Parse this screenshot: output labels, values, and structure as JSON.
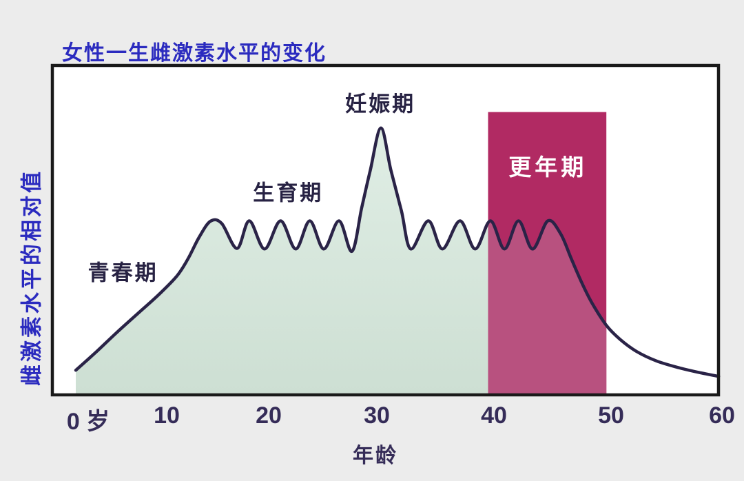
{
  "chart_data": {
    "type": "area",
    "title": "女性一生雌激素水平的变化",
    "xlabel": "年龄",
    "ylabel": "雌激素水平的相对值",
    "x_range": [
      0,
      60
    ],
    "y_range": [
      0,
      100
    ],
    "grid": false,
    "x_ticks": [
      {
        "age": 0,
        "label": "0 岁",
        "offset": 18
      },
      {
        "age": 10,
        "label": "10",
        "offset": 0
      },
      {
        "age": 20,
        "label": "20",
        "offset": 0
      },
      {
        "age": 30,
        "label": "30",
        "offset": 0
      },
      {
        "age": 40,
        "label": "40",
        "offset": 0
      },
      {
        "age": 50,
        "label": "50",
        "offset": 0
      },
      {
        "age": 60,
        "label": "60",
        "offset": 0
      }
    ],
    "curve_points": [
      [
        0,
        8
      ],
      [
        2.3,
        14.5
      ],
      [
        4.5,
        21
      ],
      [
        6.8,
        27.5
      ],
      [
        9.1,
        34
      ],
      [
        11,
        40.5
      ],
      [
        12.1,
        46.5
      ],
      [
        13.2,
        54
      ],
      [
        14.3,
        59.4
      ],
      [
        15.4,
        58.6
      ],
      [
        16.9,
        50
      ],
      [
        18.1,
        59.5
      ],
      [
        19.6,
        49.8
      ],
      [
        21.1,
        59.5
      ],
      [
        22.5,
        49.8
      ],
      [
        23.8,
        59.5
      ],
      [
        25.1,
        49.8
      ],
      [
        26.5,
        59.5
      ],
      [
        27.7,
        49
      ],
      [
        28.6,
        64
      ],
      [
        29.4,
        77
      ],
      [
        30.35,
        91.5
      ],
      [
        31.2,
        77
      ],
      [
        32.1,
        63
      ],
      [
        32.9,
        49.8
      ],
      [
        34.4,
        59.5
      ],
      [
        35.6,
        49.8
      ],
      [
        37.1,
        59.5
      ],
      [
        38.4,
        49.8
      ],
      [
        39.7,
        59.5
      ],
      [
        40.9,
        49.8
      ],
      [
        42.1,
        59.5
      ],
      [
        43.3,
        49.8
      ],
      [
        44.6,
        59.5
      ],
      [
        45.7,
        55
      ],
      [
        46.6,
        46.5
      ],
      [
        47.5,
        38.2
      ],
      [
        48.4,
        31
      ],
      [
        49.6,
        23.5
      ],
      [
        50.8,
        18.7
      ],
      [
        52.3,
        14.5
      ],
      [
        54.1,
        11.2
      ],
      [
        56.2,
        8.8
      ],
      [
        58.1,
        7.1
      ],
      [
        59.7,
        5.9
      ]
    ],
    "menopause_band": {
      "start_age": 39.5,
      "end_age": 49.6,
      "top_value": 97
    },
    "annotations": [
      {
        "text": "青春期",
        "age": 5.2,
        "value": 42.3,
        "style": "plain"
      },
      {
        "text": "生育期",
        "age": 21.8,
        "value": 69.8,
        "style": "plain"
      },
      {
        "text": "妊娠期",
        "age": 30.3,
        "value": 100.5,
        "style": "plain"
      },
      {
        "text": "更年期",
        "age": 44.6,
        "value": 78.6,
        "style": "band"
      }
    ],
    "colors": {
      "title_blue": "#2b2bbf",
      "curve_navy": "#2a2347",
      "area_green_top": "#e0eee5",
      "area_green_bottom": "#cddfd3",
      "band_magenta": "#b12a63",
      "band_under_curve_pink": "#b8517f",
      "tick_text": "#352c58",
      "page_bg": "#ececec",
      "plot_bg": "#ffffff",
      "plot_border": "#1a1a1a"
    }
  }
}
